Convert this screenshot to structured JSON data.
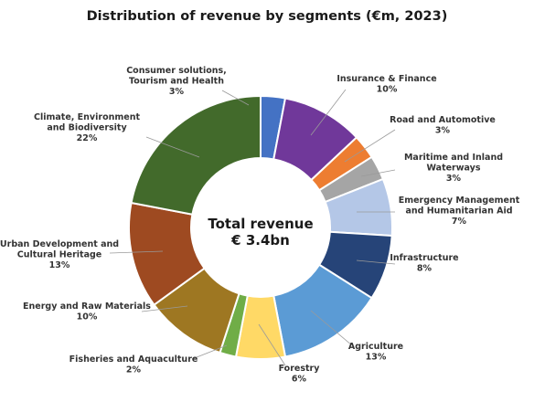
{
  "chart_data": {
    "type": "pie",
    "title": "Distribution of revenue by segments (€m, 2023)",
    "center_label": [
      "Total revenue",
      "€ 3.4bn"
    ],
    "slices": [
      {
        "name": "Consumer solutions, Tourism and Health",
        "label_lines": [
          "Consumer solutions,",
          "Tourism and Health"
        ],
        "pct_label": "3%",
        "value": 3,
        "color": "#4472C4"
      },
      {
        "name": "Insurance & Finance",
        "label_lines": [
          "Insurance & Finance"
        ],
        "pct_label": "10%",
        "value": 10,
        "color": "#70389A"
      },
      {
        "name": "Road and Automotive",
        "label_lines": [
          "Road and Automotive"
        ],
        "pct_label": "3%",
        "value": 3,
        "color": "#ED7D31"
      },
      {
        "name": "Maritime and Inland Waterways",
        "label_lines": [
          "Maritime and Inland",
          "Waterways"
        ],
        "pct_label": "3%",
        "value": 3,
        "color": "#A5A5A5"
      },
      {
        "name": "Emergency Management and Humanitarian Aid",
        "label_lines": [
          "Emergency Management",
          "and Humanitarian Aid"
        ],
        "pct_label": "7%",
        "value": 7,
        "color": "#B4C7E7"
      },
      {
        "name": "Infrastructure",
        "label_lines": [
          "Infrastructure"
        ],
        "pct_label": "8%",
        "value": 8,
        "color": "#264478"
      },
      {
        "name": "Agriculture",
        "label_lines": [
          "Agriculture"
        ],
        "pct_label": "13%",
        "value": 13,
        "color": "#5B9BD5"
      },
      {
        "name": "Forestry",
        "label_lines": [
          "Forestry"
        ],
        "pct_label": "6%",
        "value": 6,
        "color": "#FFD966"
      },
      {
        "name": "Fisheries and Aquaculture",
        "label_lines": [
          "Fisheries and Aquaculture"
        ],
        "pct_label": "2%",
        "value": 2,
        "color": "#70AD47"
      },
      {
        "name": "Energy and Raw Materials",
        "label_lines": [
          "Energy and Raw Materials"
        ],
        "pct_label": "10%",
        "value": 10,
        "color": "#9E7722"
      },
      {
        "name": "Urban Development and Cultural Heritage",
        "label_lines": [
          "Urban Development and",
          "Cultural Heritage"
        ],
        "pct_label": "13%",
        "value": 13,
        "color": "#9E4A21"
      },
      {
        "name": "Climate, Environment and Biodiversity",
        "label_lines": [
          "Climate, Environment",
          "and Biodiversity"
        ],
        "pct_label": "22%",
        "value": 22,
        "color": "#426A2B"
      }
    ]
  }
}
